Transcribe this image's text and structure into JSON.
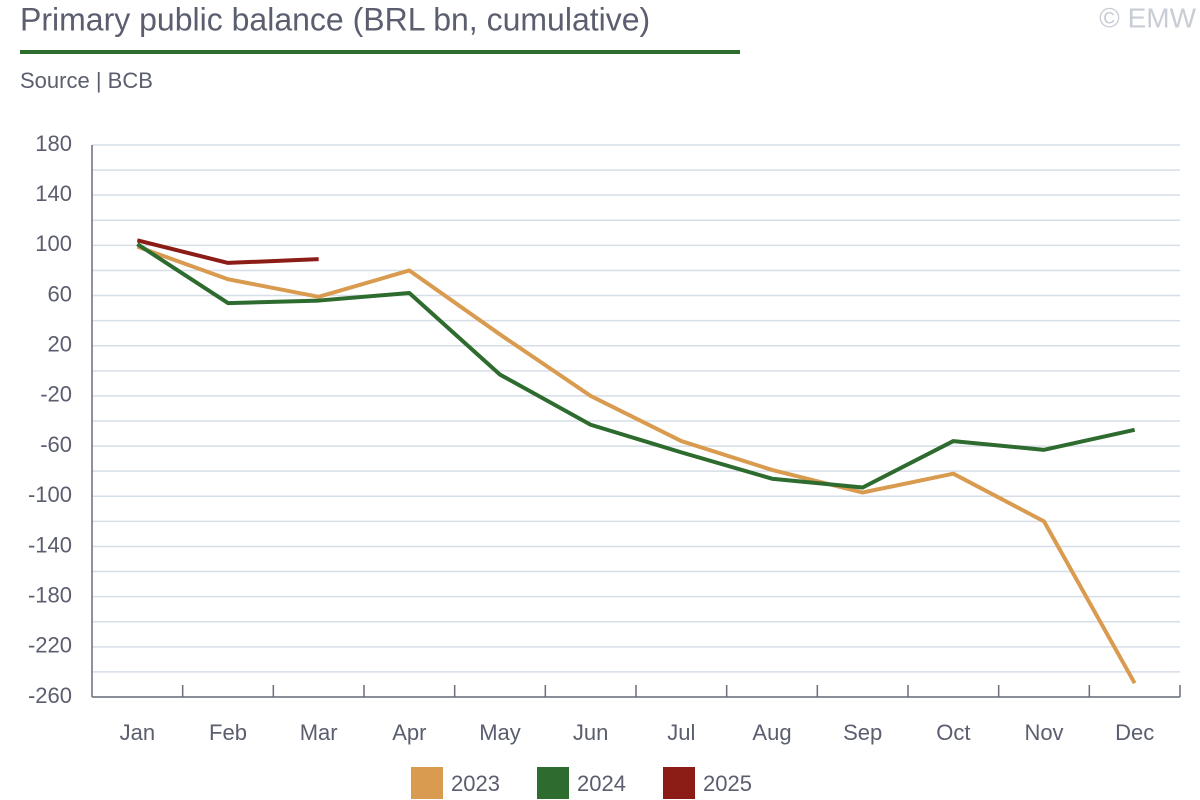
{
  "chart_data": {
    "type": "line",
    "title": "Primary public balance (BRL bn, cumulative)",
    "subtitle": "Source | BCB",
    "watermark": "© EMW",
    "categories": [
      "Jan",
      "Feb",
      "Mar",
      "Apr",
      "May",
      "Jun",
      "Jul",
      "Aug",
      "Sep",
      "Oct",
      "Nov",
      "Dec"
    ],
    "series": [
      {
        "name": "2023",
        "color": "#d99b4f",
        "values": [
          99,
          73,
          59,
          80,
          29,
          -20,
          -56,
          -79,
          -97,
          -82,
          -120,
          -249
        ]
      },
      {
        "name": "2024",
        "color": "#2e6b2e",
        "values": [
          101,
          54,
          56,
          62,
          -3,
          -43,
          -65,
          -86,
          -93,
          -56,
          -63,
          -47
        ]
      },
      {
        "name": "2025",
        "color": "#8b1c16",
        "values": [
          104,
          86,
          89,
          null,
          null,
          null,
          null,
          null,
          null,
          null,
          null,
          null
        ]
      }
    ],
    "ylim": [
      -260,
      180
    ],
    "yticks": [
      -260,
      -220,
      -180,
      -140,
      -100,
      -60,
      -20,
      20,
      60,
      100,
      140,
      180
    ],
    "grid": true,
    "legend": "bottom"
  }
}
